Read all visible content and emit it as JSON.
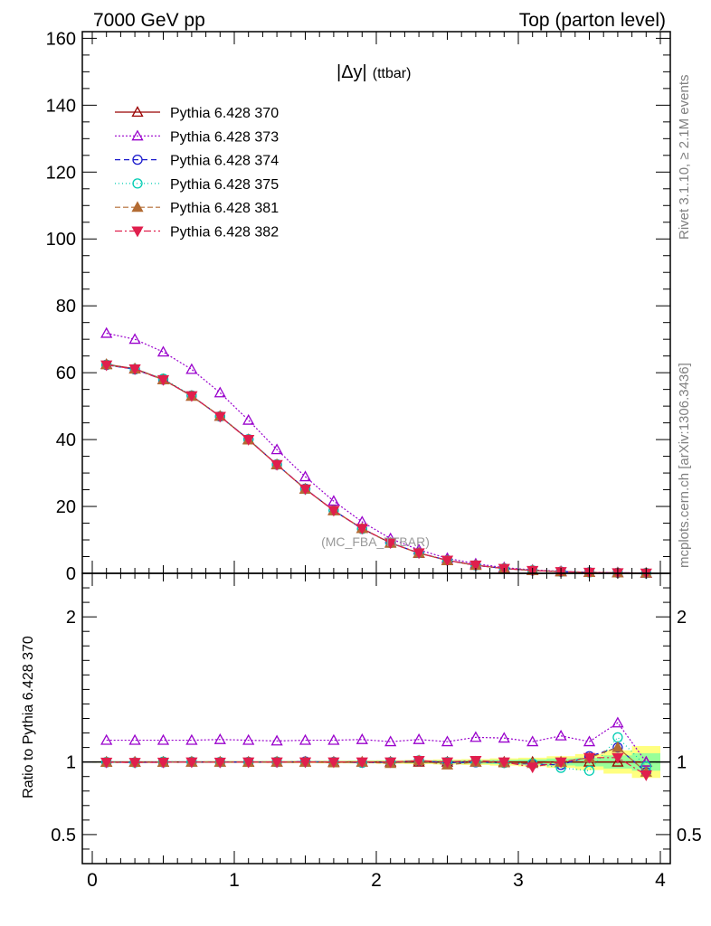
{
  "header": {
    "left": "7000 GeV pp",
    "right": "Top (parton level)"
  },
  "side_notes": {
    "rivet": "Rivet 3.1.10, ≥ 2.1M events",
    "mcplots": "mcplots.cern.ch [arXiv:1306.3436]"
  },
  "watermark": "(MC_FBA_TTBAR)",
  "colors": {
    "s370": "#990000",
    "s373": "#9900cc",
    "s374": "#1a1acc",
    "s375": "#00ccb3",
    "s381": "#b36b33",
    "s382": "#e01f4d",
    "band_outer": "#ffff80",
    "band_inner": "#99ff99"
  },
  "chart_data": [
    {
      "type": "line",
      "title": "|Δy| (ttbar)",
      "title_main": "|Δy|",
      "title_sub": "(ttbar)",
      "xlim": [
        -0.07,
        4.07
      ],
      "ylim": [
        0,
        162
      ],
      "yticks": [
        0,
        20,
        40,
        60,
        80,
        100,
        120,
        140,
        160
      ],
      "legend_position": "top-left",
      "x": [
        0.1,
        0.3,
        0.5,
        0.7,
        0.9,
        1.1,
        1.3,
        1.5,
        1.7,
        1.9,
        2.1,
        2.3,
        2.5,
        2.7,
        2.9,
        3.1,
        3.3,
        3.5,
        3.7,
        3.9
      ],
      "series": [
        {
          "name": "Pythia 6.428 370",
          "key": "s370",
          "marker": "triangle-open",
          "dash": "",
          "values": [
            62.5,
            61.2,
            58.0,
            53.0,
            47.0,
            40.0,
            32.5,
            25.2,
            18.8,
            13.4,
            9.1,
            6.0,
            3.9,
            2.4,
            1.45,
            0.87,
            0.5,
            0.28,
            0.15,
            0.08
          ]
        },
        {
          "name": "Pythia 6.428 373",
          "key": "s373",
          "marker": "triangle-open",
          "dash": "2,2",
          "values": [
            71.8,
            70.0,
            66.2,
            61.0,
            54.0,
            45.8,
            37.0,
            28.9,
            21.6,
            15.4,
            10.4,
            7.0,
            4.5,
            2.85,
            1.72,
            1.0,
            0.6,
            0.32,
            0.2,
            0.08
          ]
        },
        {
          "name": "Pythia 6.428 374",
          "key": "s374",
          "marker": "circle-open",
          "dash": "6,4",
          "values": [
            62.3,
            61.0,
            57.9,
            53.1,
            46.9,
            40.1,
            32.5,
            25.3,
            18.8,
            13.3,
            9.1,
            6.1,
            3.9,
            2.4,
            1.45,
            0.84,
            0.49,
            0.29,
            0.16,
            0.07
          ]
        },
        {
          "name": "Pythia 6.428 375",
          "key": "s375",
          "marker": "circle-open",
          "dash": "1,3",
          "values": [
            62.4,
            61.1,
            58.2,
            53.2,
            47.0,
            40.1,
            32.6,
            25.2,
            18.8,
            13.3,
            9.1,
            6.1,
            3.9,
            2.4,
            1.44,
            0.86,
            0.48,
            0.27,
            0.17,
            0.08
          ]
        },
        {
          "name": "Pythia 6.428 381",
          "key": "s381",
          "marker": "triangle-filled",
          "dash": "6,3",
          "values": [
            62.4,
            61.1,
            57.9,
            53.0,
            47.0,
            39.9,
            32.5,
            25.2,
            18.7,
            13.4,
            9.0,
            6.1,
            3.8,
            2.4,
            1.44,
            0.86,
            0.5,
            0.29,
            0.16,
            0.07
          ]
        },
        {
          "name": "Pythia 6.428 382",
          "key": "s382",
          "marker": "triangle-down-filled",
          "dash": "8,3,2,3",
          "values": [
            62.3,
            61.1,
            57.9,
            53.1,
            46.9,
            40.0,
            32.5,
            25.2,
            18.8,
            13.4,
            9.1,
            6.1,
            3.9,
            2.45,
            1.45,
            0.84,
            0.5,
            0.29,
            0.16,
            0.07
          ]
        }
      ]
    },
    {
      "type": "line",
      "xlabel": "",
      "ylabel": "Ratio to Pythia 6.428 370",
      "xlim": [
        -0.07,
        4.07
      ],
      "ylim": [
        0.3,
        2.3
      ],
      "yticks": [
        0.5,
        1,
        2
      ],
      "ytick_labels": [
        "0.5",
        "1",
        "2"
      ],
      "xticks": [
        0,
        1,
        2,
        3,
        4
      ],
      "xtick_labels": [
        "0",
        "1",
        "2",
        "3",
        "4"
      ],
      "reference": 1,
      "x": [
        0.1,
        0.3,
        0.5,
        0.7,
        0.9,
        1.1,
        1.3,
        1.5,
        1.7,
        1.9,
        2.1,
        2.3,
        2.5,
        2.7,
        2.9,
        3.1,
        3.3,
        3.5,
        3.7,
        3.9
      ],
      "band": {
        "outer": [
          0.005,
          0.005,
          0.005,
          0.005,
          0.006,
          0.006,
          0.007,
          0.008,
          0.009,
          0.01,
          0.012,
          0.014,
          0.017,
          0.02,
          0.025,
          0.03,
          0.04,
          0.055,
          0.08,
          0.11
        ],
        "inner": [
          0.003,
          0.003,
          0.003,
          0.003,
          0.004,
          0.004,
          0.004,
          0.005,
          0.005,
          0.006,
          0.007,
          0.008,
          0.01,
          0.012,
          0.015,
          0.018,
          0.024,
          0.03,
          0.045,
          0.06
        ]
      },
      "series": [
        {
          "name": "Pythia 6.428 370",
          "key": "s370",
          "marker": "triangle-open",
          "dash": "",
          "values": [
            1.0,
            1.0,
            1.0,
            1.0,
            1.0,
            1.0,
            1.0,
            1.0,
            1.0,
            1.0,
            1.0,
            1.0,
            1.0,
            1.0,
            1.0,
            1.0,
            1.0,
            1.0,
            1.0,
            1.0
          ]
        },
        {
          "name": "Pythia 6.428 373",
          "key": "s373",
          "marker": "triangle-open",
          "dash": "2,2",
          "values": [
            1.15,
            1.15,
            1.15,
            1.15,
            1.155,
            1.15,
            1.145,
            1.15,
            1.15,
            1.155,
            1.14,
            1.155,
            1.14,
            1.17,
            1.165,
            1.14,
            1.18,
            1.14,
            1.27,
            1.0
          ]
        },
        {
          "name": "Pythia 6.428 374",
          "key": "s374",
          "marker": "circle-open",
          "dash": "6,4",
          "values": [
            0.998,
            0.997,
            0.998,
            1.0,
            0.999,
            1.0,
            0.999,
            1.003,
            1.0,
            0.995,
            0.998,
            1.01,
            0.995,
            0.998,
            0.995,
            0.985,
            0.98,
            1.04,
            1.1,
            0.93
          ]
        },
        {
          "name": "Pythia 6.428 375",
          "key": "s375",
          "marker": "circle-open",
          "dash": "1,3",
          "values": [
            1.0,
            0.997,
            1.002,
            1.002,
            1.0,
            1.0,
            1.002,
            1.0,
            1.0,
            0.995,
            1.0,
            1.01,
            1.0,
            1.0,
            0.993,
            0.99,
            0.96,
            0.94,
            1.17,
            0.97
          ]
        },
        {
          "name": "Pythia 6.428 381",
          "key": "s381",
          "marker": "triangle-filled",
          "dash": "6,3",
          "values": [
            0.998,
            0.998,
            0.998,
            1.0,
            1.0,
            0.998,
            1.0,
            1.0,
            0.995,
            1.0,
            0.99,
            1.01,
            0.98,
            1.0,
            0.995,
            0.99,
            1.0,
            1.03,
            1.1,
            0.93
          ]
        },
        {
          "name": "Pythia 6.428 382",
          "key": "s382",
          "marker": "triangle-down-filled",
          "dash": "8,3,2,3",
          "values": [
            0.998,
            0.997,
            0.998,
            1.0,
            0.998,
            1.0,
            1.0,
            1.0,
            1.0,
            1.0,
            1.0,
            1.01,
            1.0,
            1.01,
            1.0,
            0.965,
            1.0,
            1.03,
            1.03,
            0.91
          ]
        }
      ]
    }
  ]
}
